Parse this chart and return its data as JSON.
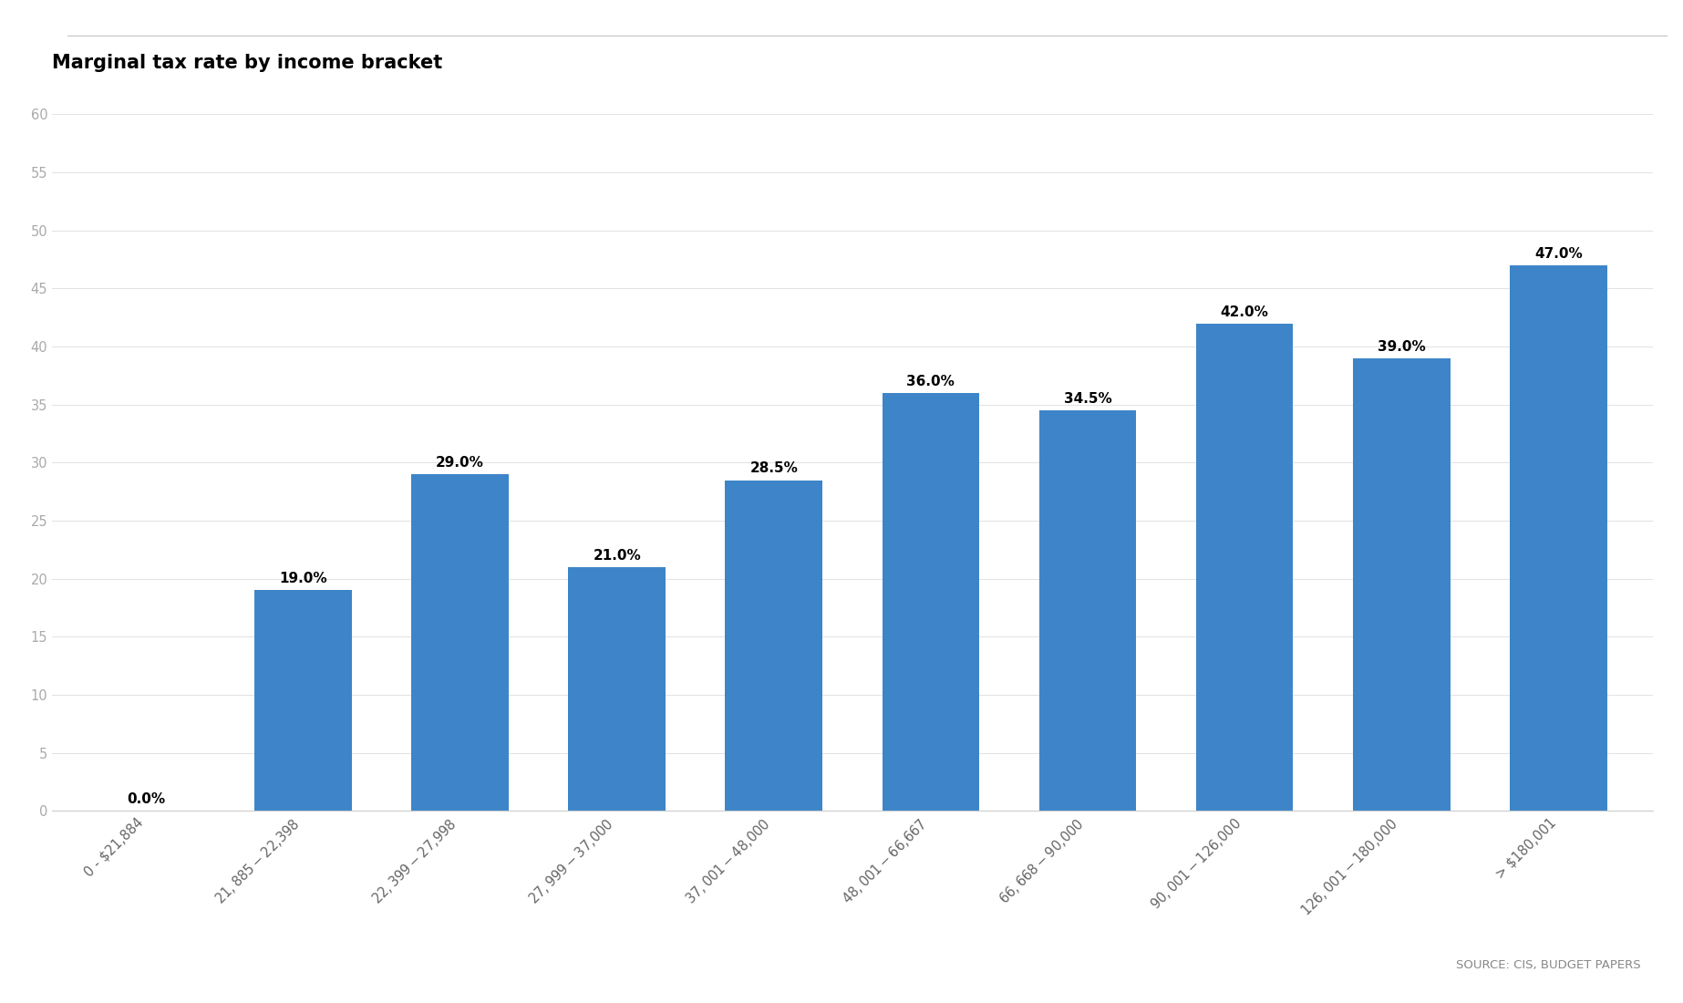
{
  "title": "Marginal tax rate by income bracket",
  "categories": [
    "0 - $21,884",
    "$21,885 - $22,398",
    "$22,399 - $27,998",
    "$27,999 - $37,000",
    "$37,001 - $48,000",
    "$48,001 - $66,667",
    "$66,668 - $90,000",
    "$90,001 - $126,000",
    "$126,001 - $180,000",
    "> $180,001"
  ],
  "values": [
    0.0,
    19.0,
    29.0,
    21.0,
    28.5,
    36.0,
    34.5,
    42.0,
    39.0,
    47.0
  ],
  "bar_color": "#3d85c8",
  "background_color": "#ffffff",
  "ylim": [
    0,
    62
  ],
  "yticks": [
    0,
    5,
    10,
    15,
    20,
    25,
    30,
    35,
    40,
    45,
    50,
    55,
    60
  ],
  "source_text": "SOURCE: CIS, BUDGET PAPERS",
  "title_fontsize": 15,
  "label_fontsize": 11,
  "tick_fontsize": 10.5,
  "source_fontsize": 9.5,
  "ytick_color": "#aaaaaa",
  "grid_color": "#dddddd",
  "top_line_color": "#cccccc"
}
